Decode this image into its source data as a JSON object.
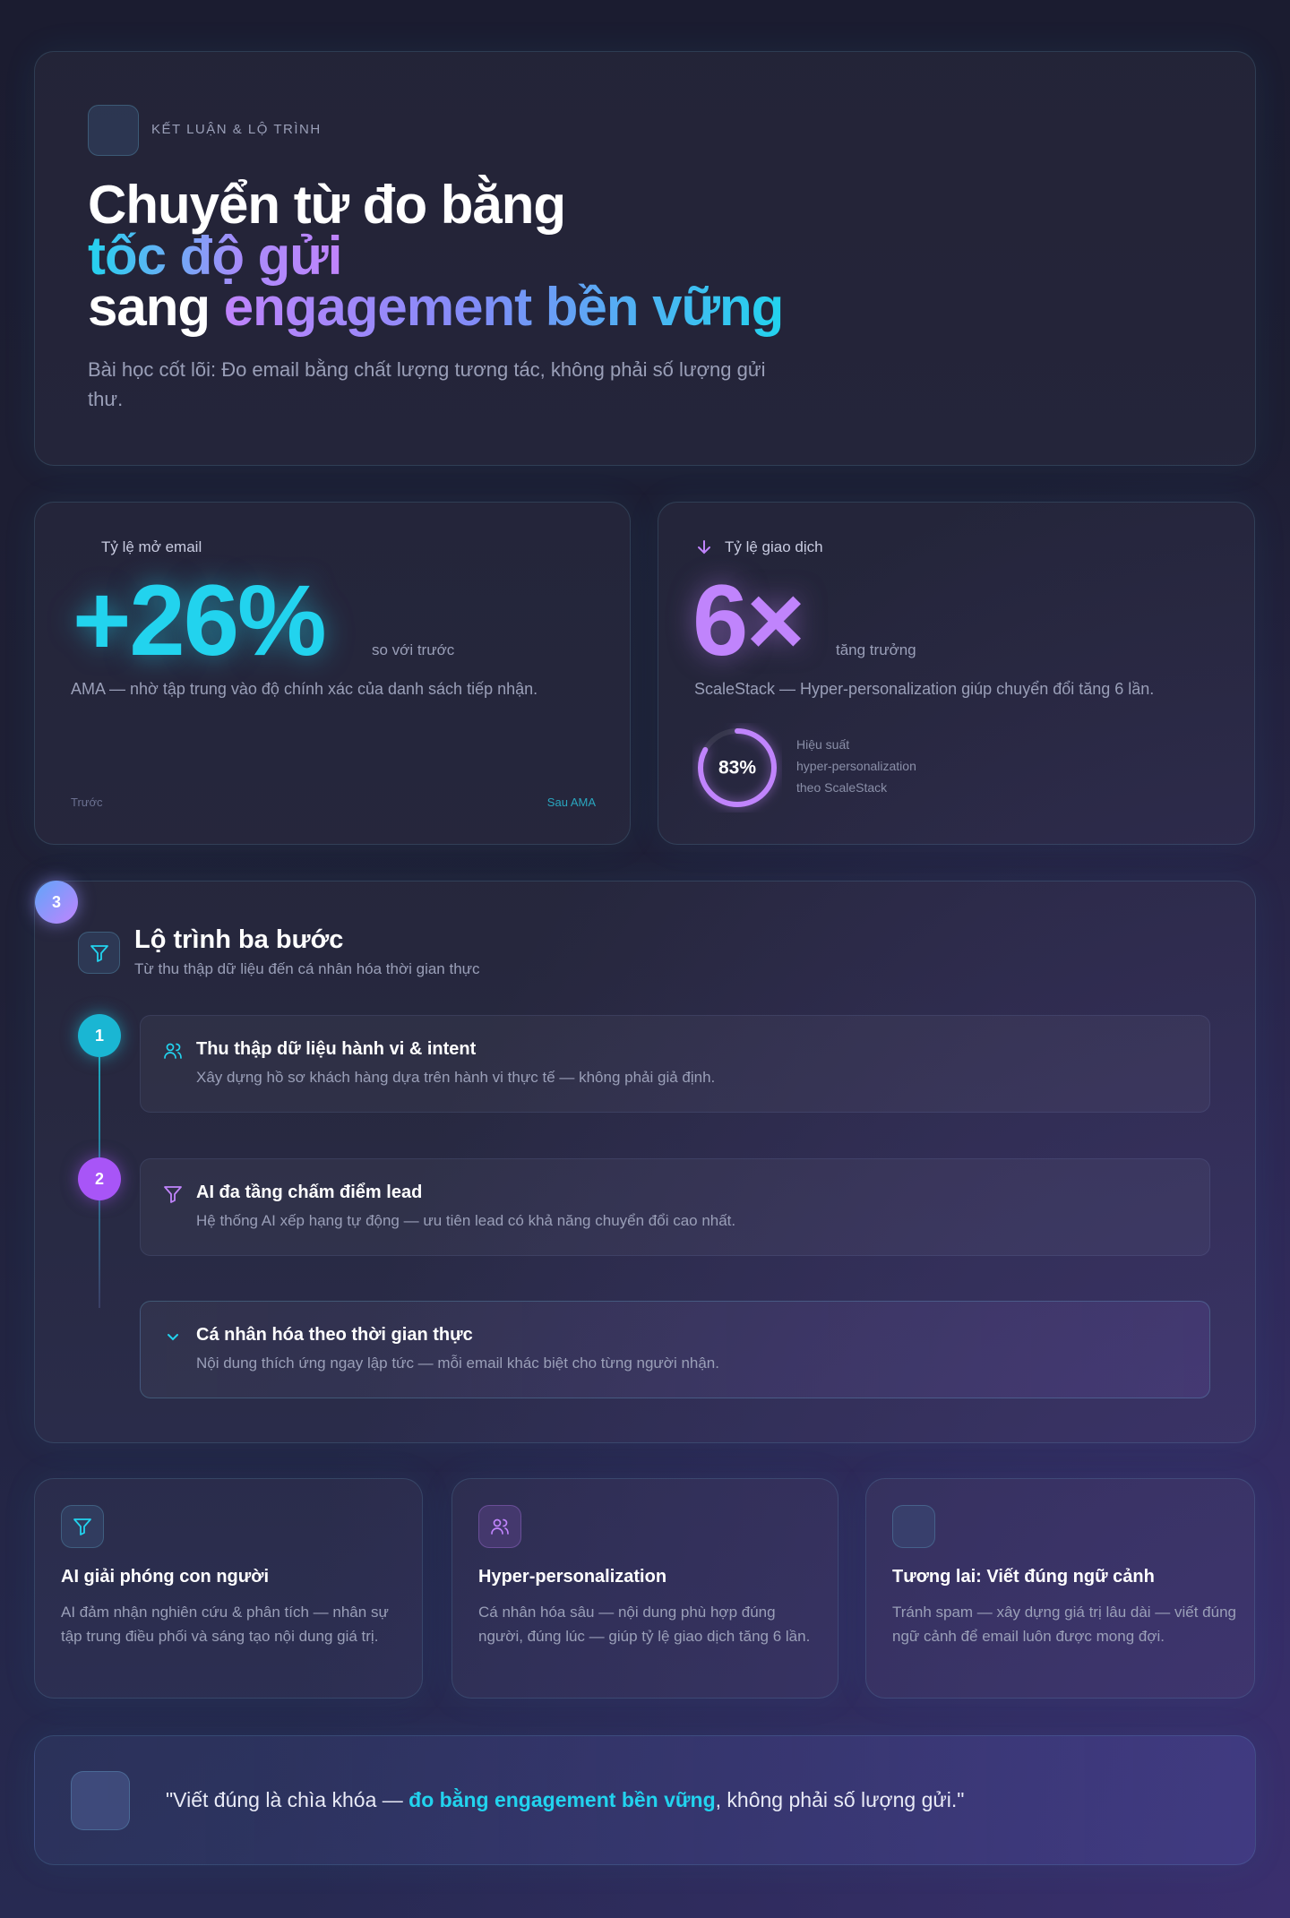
{
  "hero": {
    "label": "KẾT LUẬN & LỘ TRÌNH",
    "title_line1": "Chuyển từ đo bằng",
    "title_line2": "tốc độ gửi",
    "title_line3_plain": "sang",
    "title_line3_highlight": "engagement bền vững",
    "subtitle": "Bài học cốt lõi: Đo email bằng chất lượng tương tác, không phải số lượng gửi thư."
  },
  "stats": [
    {
      "label": "Tỷ lệ mở email",
      "figure": "+26%",
      "figure_note": "so với trước",
      "description": "AMA — nhờ tập trung vào độ chính xác của danh sách tiếp nhận.",
      "bar_start": "Trước",
      "bar_end": "Sau AMA"
    },
    {
      "label": "Tỷ lệ giao dịch",
      "figure": "6×",
      "figure_note": "tăng trưởng",
      "description": "ScaleStack — Hyper-personalization giúp chuyển đổi tăng 6 lần.",
      "ring": {
        "value": 83,
        "label": "83%"
      },
      "ring_caption": [
        "Hiệu suất",
        "hyper-personalization",
        "theo ScaleStack"
      ]
    }
  ],
  "roadmap": {
    "badge": "3",
    "title": "Lộ trình ba bước",
    "subtitle": "Từ thu thập dữ liệu đến cá nhân hóa thời gian thực",
    "steps": [
      {
        "number": "1",
        "title": "Thu thập dữ liệu hành vi & intent",
        "description": "Xây dựng hồ sơ khách hàng dựa trên hành vi thực tế — không phải giả định."
      },
      {
        "number": "2",
        "title": "AI đa tầng chấm điểm lead",
        "description": "Hệ thống AI xếp hạng tự động — ưu tiên lead có khả năng chuyển đổi cao nhất."
      },
      {
        "title": "Cá nhân hóa theo thời gian thực",
        "description": "Nội dung thích ứng ngay lập tức — mỗi email khác biệt cho từng người nhận."
      }
    ]
  },
  "cards": [
    {
      "title": "AI giải phóng con người",
      "description": "AI đảm nhận nghiên cứu & phân tích — nhân sự tập trung điều phối và sáng tạo nội dung giá trị."
    },
    {
      "title": "Hyper-personalization",
      "description": "Cá nhân hóa sâu — nội dung phù hợp đúng người, đúng lúc — giúp tỷ lệ giao dịch tăng 6 lần."
    },
    {
      "title": "Tương lai: Viết đúng ngữ cảnh",
      "description": "Tránh spam — xây dựng giá trị lâu dài — viết đúng ngữ cảnh để email luôn được mong đợi."
    }
  ],
  "quote": {
    "before": "\"Viết đúng là chìa khóa — ",
    "highlight": "đo bằng engagement bền vững",
    "after": ", không phải số lượng gửi.\""
  }
}
